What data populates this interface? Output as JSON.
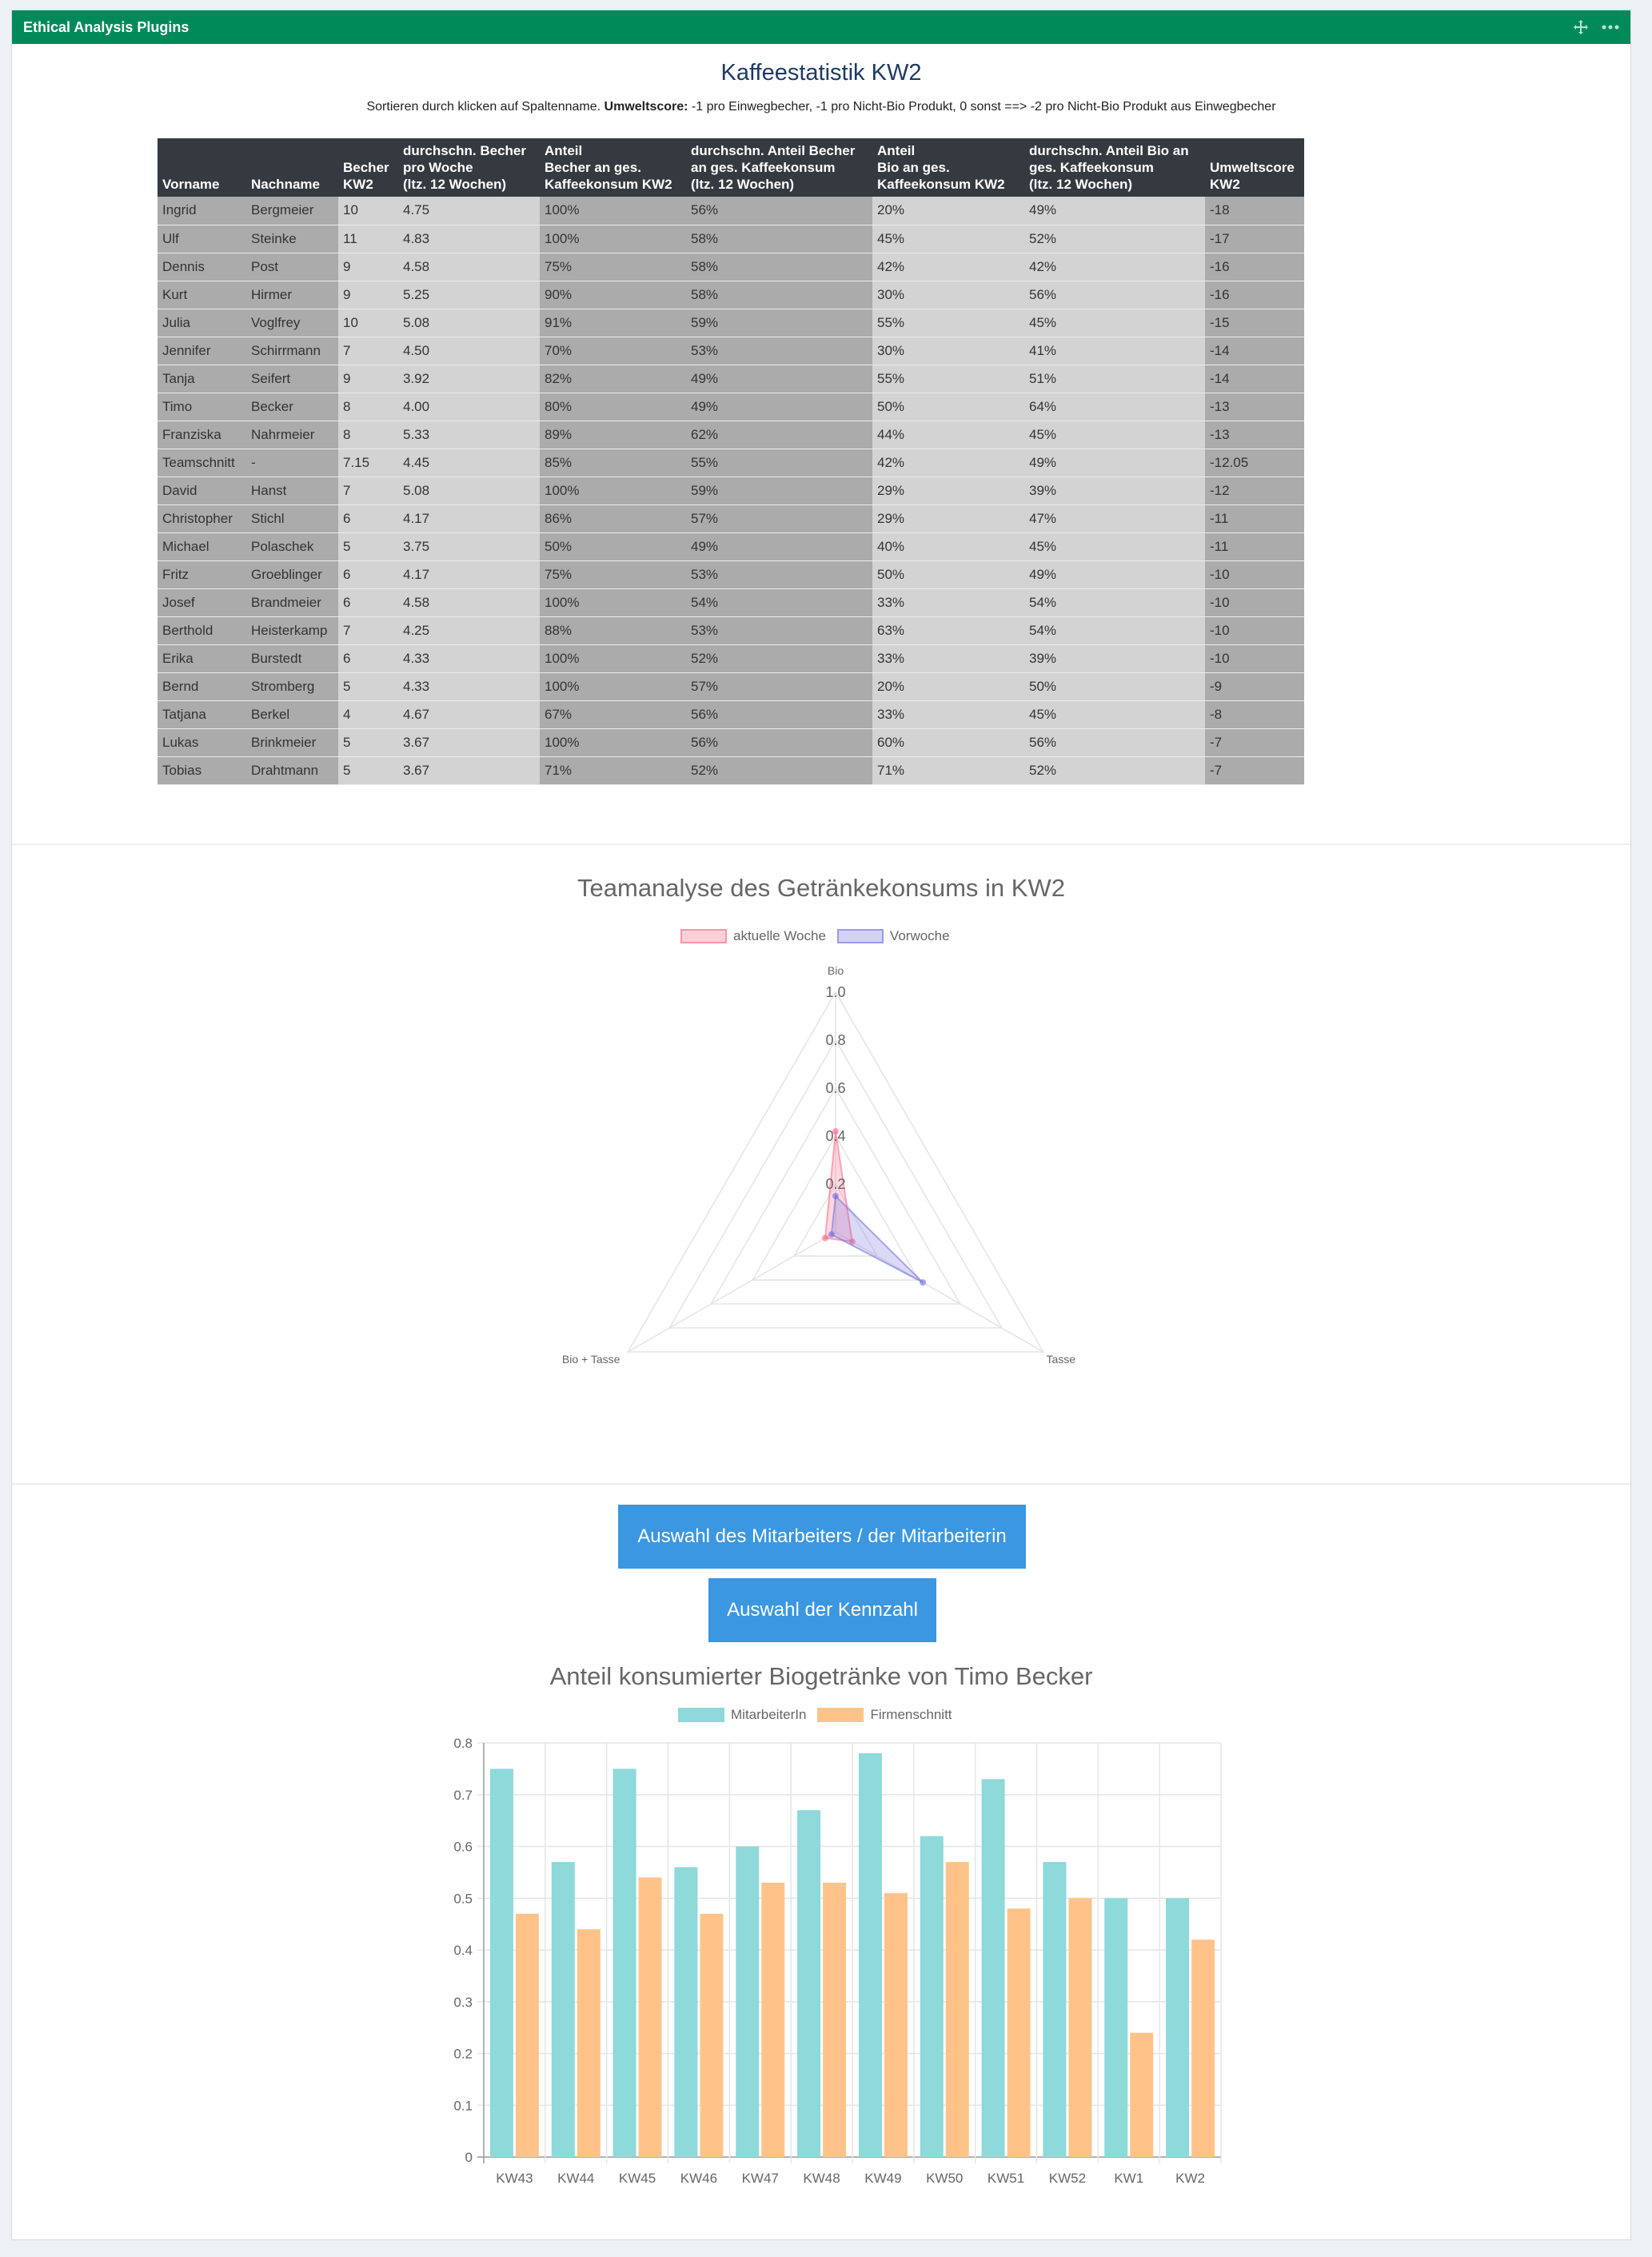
{
  "panel": {
    "title": "Ethical Analysis Plugins"
  },
  "stats": {
    "title": "Kaffeestatistik KW2",
    "subtitle_pre": "Sortieren durch klicken auf Spaltenname. ",
    "subtitle_bold": "Umweltscore:",
    "subtitle_post": " -1 pro Einwegbecher, -1 pro Nicht-Bio Produkt, 0 sonst ==> -2 pro Nicht-Bio Produkt aus Einwegbecher",
    "headers": [
      "Vorname",
      "Nachname",
      "Becher\nKW2",
      "durchschn. Becher\npro Woche\n(ltz. 12 Wochen)",
      "Anteil\nBecher an ges.\nKaffeekonsum KW2",
      "durchschn. Anteil Becher\nan ges. Kaffeekonsum\n(ltz. 12 Wochen)",
      "Anteil\nBio an ges.\nKaffeekonsum KW2",
      "durchschn. Anteil Bio an\nges. Kaffeekonsum\n(ltz. 12 Wochen)",
      "Umweltscore\nKW2"
    ],
    "rows": [
      [
        "Ingrid",
        "Bergmeier",
        "10",
        "4.75",
        "100%",
        "56%",
        "20%",
        "49%",
        "-18"
      ],
      [
        "Ulf",
        "Steinke",
        "11",
        "4.83",
        "100%",
        "58%",
        "45%",
        "52%",
        "-17"
      ],
      [
        "Dennis",
        "Post",
        "9",
        "4.58",
        "75%",
        "58%",
        "42%",
        "42%",
        "-16"
      ],
      [
        "Kurt",
        "Hirmer",
        "9",
        "5.25",
        "90%",
        "58%",
        "30%",
        "56%",
        "-16"
      ],
      [
        "Julia",
        "Voglfrey",
        "10",
        "5.08",
        "91%",
        "59%",
        "55%",
        "45%",
        "-15"
      ],
      [
        "Jennifer",
        "Schirrmann",
        "7",
        "4.50",
        "70%",
        "53%",
        "30%",
        "41%",
        "-14"
      ],
      [
        "Tanja",
        "Seifert",
        "9",
        "3.92",
        "82%",
        "49%",
        "55%",
        "51%",
        "-14"
      ],
      [
        "Timo",
        "Becker",
        "8",
        "4.00",
        "80%",
        "49%",
        "50%",
        "64%",
        "-13"
      ],
      [
        "Franziska",
        "Nahrmeier",
        "8",
        "5.33",
        "89%",
        "62%",
        "44%",
        "45%",
        "-13"
      ],
      [
        "Teamschnitt",
        "-",
        "7.15",
        "4.45",
        "85%",
        "55%",
        "42%",
        "49%",
        "-12.05"
      ],
      [
        "David",
        "Hanst",
        "7",
        "5.08",
        "100%",
        "59%",
        "29%",
        "39%",
        "-12"
      ],
      [
        "Christopher",
        "Stichl",
        "6",
        "4.17",
        "86%",
        "57%",
        "29%",
        "47%",
        "-11"
      ],
      [
        "Michael",
        "Polaschek",
        "5",
        "3.75",
        "50%",
        "49%",
        "40%",
        "45%",
        "-11"
      ],
      [
        "Fritz",
        "Groeblinger",
        "6",
        "4.17",
        "75%",
        "53%",
        "50%",
        "49%",
        "-10"
      ],
      [
        "Josef",
        "Brandmeier",
        "6",
        "4.58",
        "100%",
        "54%",
        "33%",
        "54%",
        "-10"
      ],
      [
        "Berthold",
        "Heisterkamp",
        "7",
        "4.25",
        "88%",
        "53%",
        "63%",
        "54%",
        "-10"
      ],
      [
        "Erika",
        "Burstedt",
        "6",
        "4.33",
        "100%",
        "52%",
        "33%",
        "39%",
        "-10"
      ],
      [
        "Bernd",
        "Stromberg",
        "5",
        "4.33",
        "100%",
        "57%",
        "20%",
        "50%",
        "-9"
      ],
      [
        "Tatjana",
        "Berkel",
        "4",
        "4.67",
        "67%",
        "56%",
        "33%",
        "45%",
        "-8"
      ],
      [
        "Lukas",
        "Brinkmeier",
        "5",
        "3.67",
        "100%",
        "56%",
        "60%",
        "56%",
        "-7"
      ],
      [
        "Tobias",
        "Drahtmann",
        "5",
        "3.67",
        "71%",
        "52%",
        "71%",
        "52%",
        "-7"
      ]
    ]
  },
  "radar": {
    "title": "Teamanalyse des Getränkekonsums in KW2",
    "axes": [
      "Bio",
      "Tasse",
      "Bio + Tasse"
    ],
    "ticks": [
      "0.2",
      "0.4",
      "0.6",
      "0.8",
      "1.0"
    ],
    "series": [
      {
        "name": "aktuelle Woche",
        "color": "#ff6384",
        "values": [
          0.42,
          0.08,
          0.05
        ]
      },
      {
        "name": "Vorwoche",
        "color": "#6b6be0",
        "values": [
          0.15,
          0.42,
          0.02
        ]
      }
    ]
  },
  "buttons": {
    "employee": "Auswahl des Mitarbeiters / der Mitarbeiterin",
    "metric": "Auswahl der Kennzahl"
  },
  "chart_data": {
    "type": "bar",
    "title": "Anteil konsumierter Biogetränke von Timo Becker",
    "categories": [
      "KW43",
      "KW44",
      "KW45",
      "KW46",
      "KW47",
      "KW48",
      "KW49",
      "KW50",
      "KW51",
      "KW52",
      "KW1",
      "KW2"
    ],
    "series": [
      {
        "name": "MitarbeiterIn",
        "color": "#8ed9d9",
        "values": [
          0.75,
          0.57,
          0.75,
          0.56,
          0.6,
          0.67,
          0.78,
          0.62,
          0.73,
          0.57,
          0.5,
          0.5
        ]
      },
      {
        "name": "Firmenschnitt",
        "color": "#ffc38a",
        "values": [
          0.47,
          0.44,
          0.54,
          0.47,
          0.53,
          0.53,
          0.51,
          0.57,
          0.48,
          0.5,
          0.24,
          0.42
        ]
      }
    ],
    "ylim": [
      0,
      0.8
    ],
    "yticks": [
      "0",
      "0.1",
      "0.2",
      "0.3",
      "0.4",
      "0.5",
      "0.6",
      "0.7",
      "0.8"
    ],
    "legend": "top",
    "grid": true
  }
}
